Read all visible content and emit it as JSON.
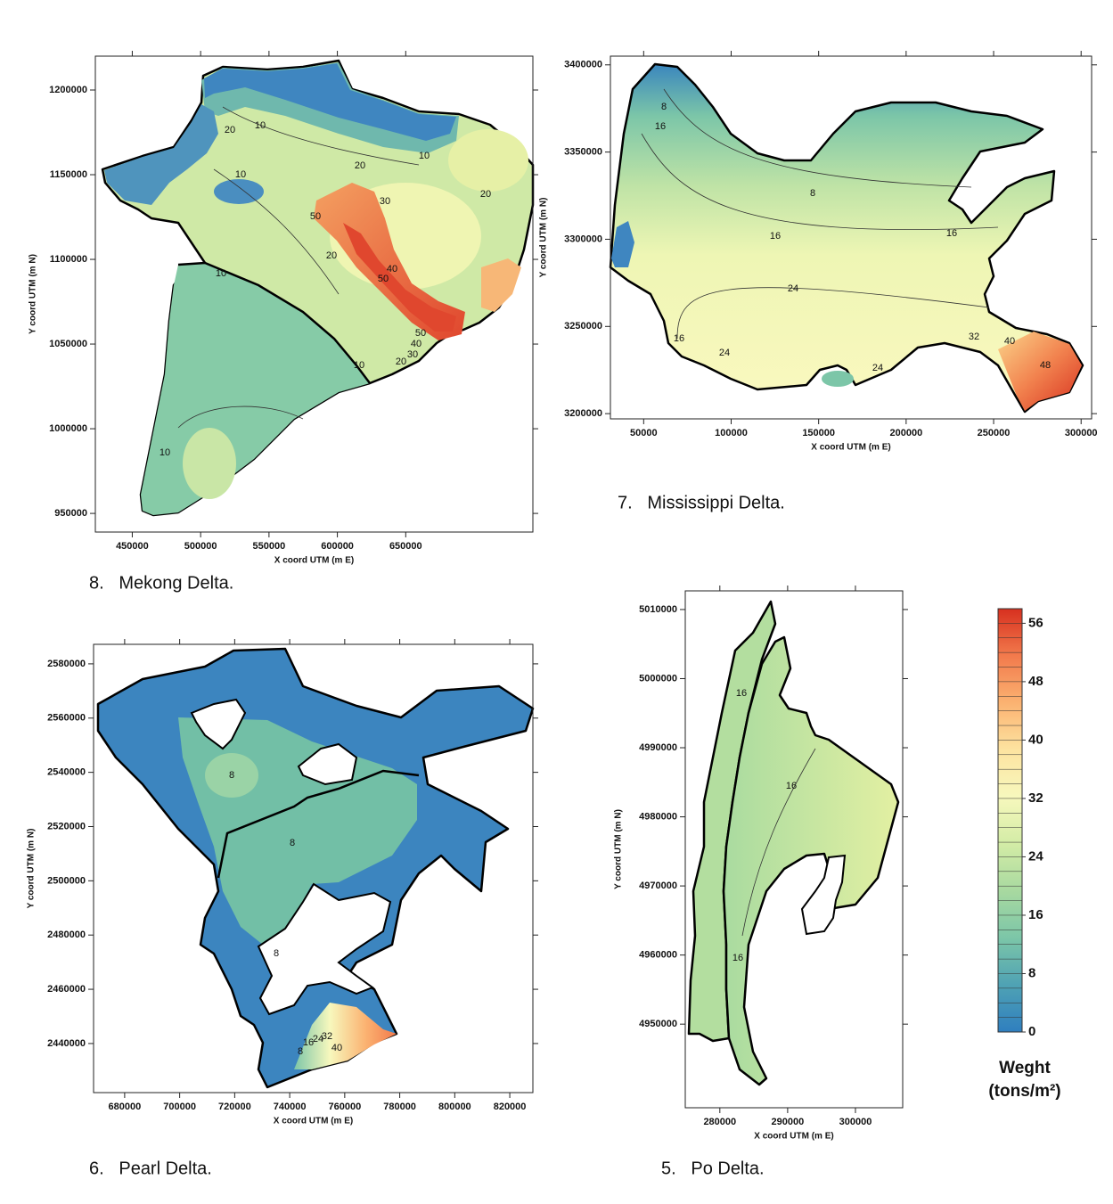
{
  "chart_data": [
    {
      "type": "contour",
      "caption": "8.   Mekong Delta.",
      "x_label": "X coord UTM (m E)",
      "y_label": "Y coord UTM (m N)",
      "xlim": [
        423000,
        743000
      ],
      "xticks": [
        450000,
        500000,
        550000,
        600000,
        650000
      ],
      "ylim": [
        939000,
        1220000
      ],
      "yticks": [
        950000,
        1000000,
        1050000,
        1100000,
        1150000,
        1200000
      ],
      "contour_labels": [
        10,
        20,
        10,
        20,
        10,
        20,
        30,
        50,
        20,
        10,
        40,
        50,
        50,
        40,
        30,
        20,
        10,
        10
      ]
    },
    {
      "type": "contour",
      "caption": "7.   Mississippi Delta.",
      "x_label": "X coord UTM (m E)",
      "y_label": "Y coord UTM (m N)",
      "xlim": [
        31000,
        306000
      ],
      "xticks": [
        50000,
        100000,
        150000,
        200000,
        250000,
        300000
      ],
      "ylim": [
        3197000,
        3405000
      ],
      "yticks": [
        3200000,
        3250000,
        3300000,
        3350000,
        3400000
      ],
      "contour_labels": [
        8,
        16,
        8,
        16,
        16,
        24,
        16,
        24,
        24,
        32,
        40,
        48
      ]
    },
    {
      "type": "contour",
      "caption": "6.   Pearl Delta.",
      "x_label": "X coord UTM (m E)",
      "y_label": "Y coord UTM (m N)",
      "xlim": [
        668700,
        828400
      ],
      "xticks": [
        680000,
        700000,
        720000,
        740000,
        760000,
        780000,
        800000,
        820000
      ],
      "ylim": [
        2421900,
        2587200
      ],
      "yticks": [
        2440000,
        2460000,
        2480000,
        2500000,
        2520000,
        2540000,
        2560000,
        2580000
      ],
      "contour_labels": [
        8,
        8,
        8,
        8,
        16,
        24,
        32,
        40
      ]
    },
    {
      "type": "contour",
      "caption": "5.   Po Delta.",
      "x_label": "X coord UTM (m E)",
      "y_label": "Y coord UTM (m N)",
      "xlim": [
        274900,
        306970
      ],
      "xticks": [
        280000,
        290000,
        300000
      ],
      "ylim": [
        4937900,
        5012700
      ],
      "yticks": [
        4950000,
        4960000,
        4970000,
        4980000,
        4990000,
        5000000,
        5010000
      ],
      "contour_labels": [
        16,
        16,
        16
      ]
    },
    {
      "type": "colorbar",
      "title": "Weght",
      "unit": "(tons/m²)",
      "lim": [
        0,
        58
      ],
      "ticks": [
        0,
        8,
        16,
        24,
        32,
        40,
        48,
        56
      ],
      "colors": [
        "#2f7fbf",
        "#4fa2b4",
        "#7cc6a8",
        "#a8d9a0",
        "#d3eca6",
        "#f7f8bd",
        "#fde3a0",
        "#fbb271",
        "#f27a4c",
        "#d7301f"
      ]
    }
  ]
}
